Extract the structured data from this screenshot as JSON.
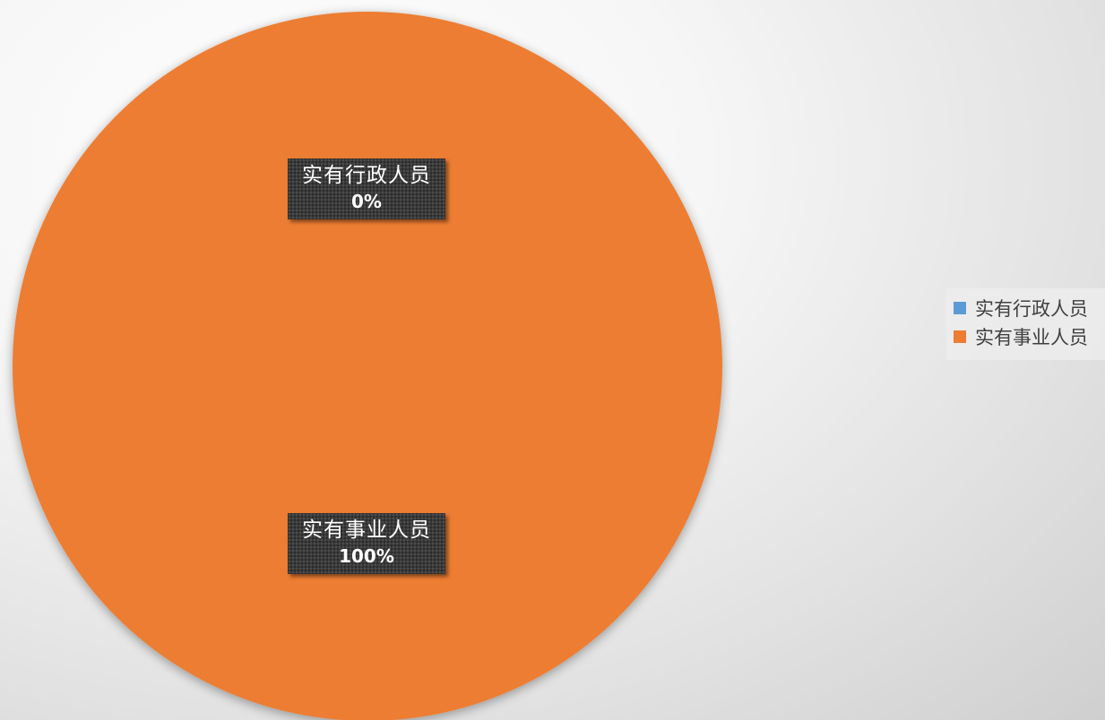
{
  "chart_data": {
    "type": "pie",
    "title": "",
    "categories": [
      "实有行政人员",
      "实有事业人员"
    ],
    "values": [
      0,
      100
    ],
    "percent_labels": [
      "0%",
      "100%"
    ],
    "colors": [
      "#5b9bd5",
      "#ed7d31"
    ],
    "legend_position": "right"
  },
  "legend": {
    "items": [
      {
        "label": "实有行政人员",
        "color": "#5b9bd5"
      },
      {
        "label": "实有事业人员",
        "color": "#ed7d31"
      }
    ]
  },
  "data_labels": [
    {
      "name": "实有行政人员",
      "value": "0%"
    },
    {
      "name": "实有事业人员",
      "value": "100%"
    }
  ]
}
